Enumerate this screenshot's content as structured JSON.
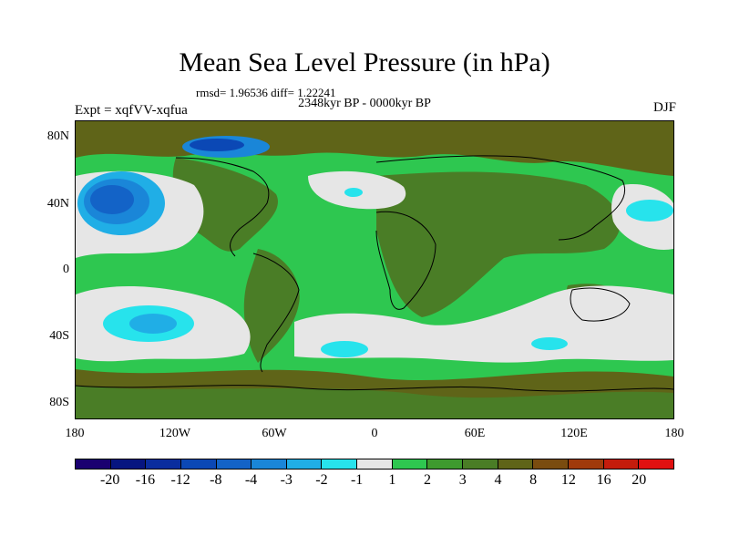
{
  "title": "Mean Sea Level Pressure (in hPa)",
  "stats": "rmsd= 1.96536 diff= 1.22241",
  "period": "2348kyr BP - 0000kyr BP",
  "experiment": "Expt = xqfVV-xqfua",
  "season": "DJF",
  "axes": {
    "lat_labels": [
      "80N",
      "40N",
      "0",
      "40S",
      "80S"
    ],
    "lon_labels": [
      "180",
      "120W",
      "60W",
      "0",
      "60E",
      "120E",
      "180"
    ]
  },
  "colorbar": {
    "labels": [
      "-20",
      "-16",
      "-12",
      "-8",
      "-4",
      "-3",
      "-2",
      "-1",
      "1",
      "2",
      "3",
      "4",
      "8",
      "12",
      "16",
      "20"
    ],
    "colors": [
      "#1a0070",
      "#061580",
      "#0a2d9e",
      "#0b48b5",
      "#1363c7",
      "#1a86d8",
      "#20aee6",
      "#27e3ec",
      "#e6e6e6",
      "#2ec750",
      "#3e9a2e",
      "#4a7d26",
      "#5f6418",
      "#7a4c0f",
      "#a03a0b",
      "#c51c0c",
      "#e01010"
    ]
  },
  "colors": {
    "land_low_anom": "#4a7d26",
    "ocean_pos": "#2ec750",
    "neutral": "#e6e6e6",
    "neg_light": "#27e3ec",
    "neg_mid": "#20aee6",
    "neg_dark": "#1363c7",
    "pos_high": "#5f6418"
  }
}
